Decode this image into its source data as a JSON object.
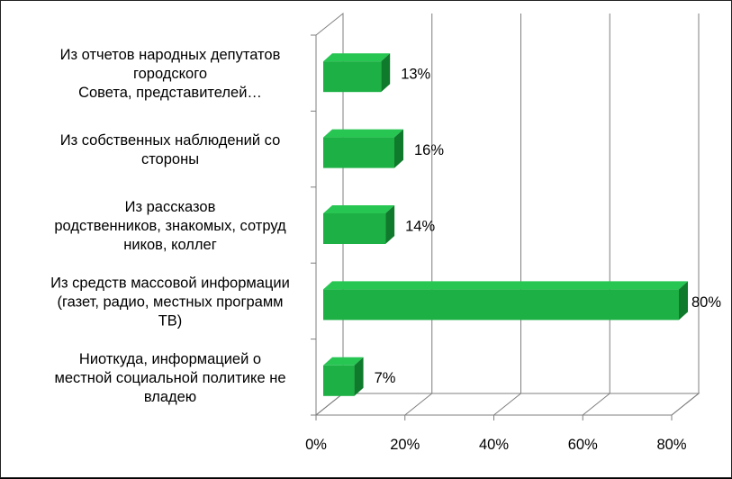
{
  "chart_data": {
    "type": "bar",
    "orientation": "horizontal",
    "style": "3d",
    "categories": [
      "Из отчетов народных депутатов городского Совета, представителей…",
      "Из собственных наблюдений со стороны",
      "Из рассказов родственников, знакомых, сотрудников, коллег",
      "Из средств массовой информации (газет, радио, местных программ ТВ)",
      "Ниоткуда, информацией о местной социальной политике не владею"
    ],
    "category_lines": [
      [
        "Из отчетов народных депутатов",
        "городского",
        "Совета, представителей…"
      ],
      [
        "Из собственных наблюдений со",
        "стороны"
      ],
      [
        "Из рассказов",
        "родственников, знакомых, сотруд",
        "ников, коллег"
      ],
      [
        "Из средств массовой информации",
        "(газет, радио, местных программ",
        "ТВ)"
      ],
      [
        "Ниоткуда, информацией о",
        "местной социальной политике не",
        "владею"
      ]
    ],
    "values": [
      13,
      16,
      14,
      80,
      7
    ],
    "data_labels": [
      "13%",
      "16%",
      "14%",
      "80%",
      "7%"
    ],
    "x_ticks": [
      "0%",
      "20%",
      "40%",
      "60%",
      "80%"
    ],
    "x_tick_values": [
      0,
      20,
      40,
      60,
      80
    ],
    "xlim": [
      0,
      80
    ],
    "grid": true,
    "legend": "none",
    "colors": {
      "bar_front": "#1db044",
      "bar_top": "#27c552",
      "bar_side": "#0f7a2c",
      "grid": "#7f7f7f",
      "wall": "#ffffff"
    }
  }
}
